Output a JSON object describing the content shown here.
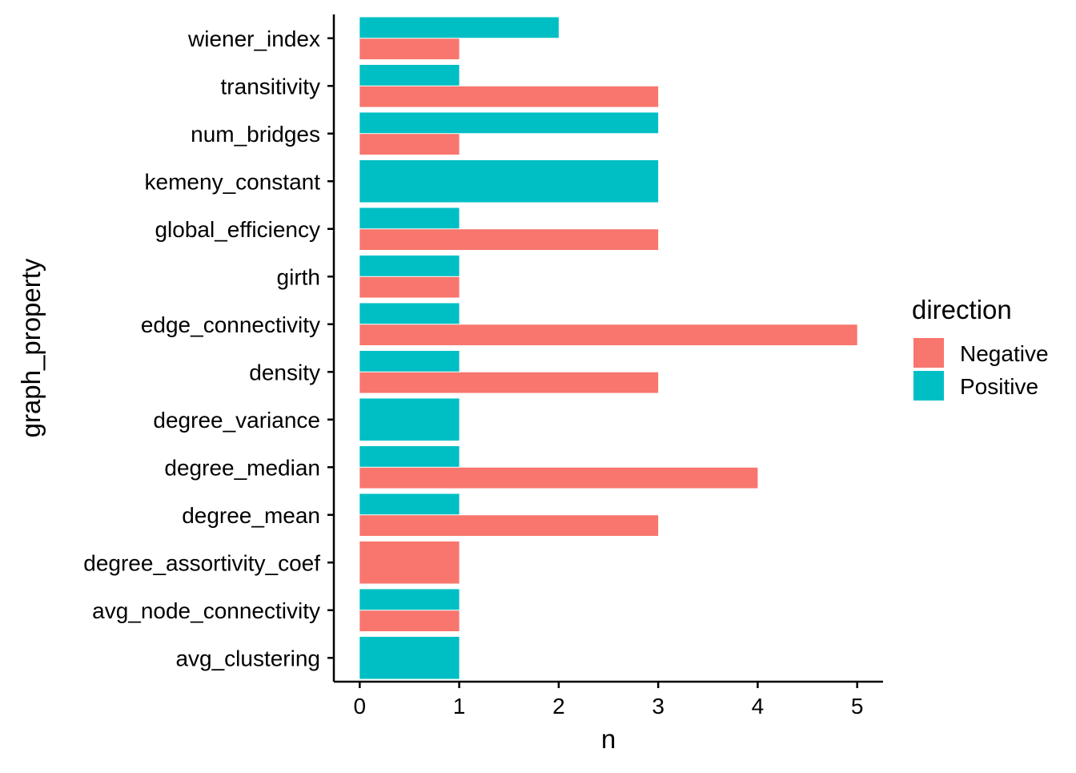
{
  "chart_data": {
    "type": "bar",
    "orientation": "horizontal",
    "bar_mode": "dodged",
    "xlabel": "n",
    "ylabel": "graph_property",
    "xlim": [
      -0.26,
      5.26
    ],
    "x_ticks": [
      0,
      1,
      2,
      3,
      4,
      5
    ],
    "grid": false,
    "legend": {
      "title": "direction",
      "position": "right"
    },
    "categories": [
      "wiener_index",
      "transitivity",
      "num_bridges",
      "kemeny_constant",
      "global_efficiency",
      "girth",
      "edge_connectivity",
      "density",
      "degree_variance",
      "degree_median",
      "degree_mean",
      "degree_assortivity_coef",
      "avg_node_connectivity",
      "avg_clustering"
    ],
    "series": [
      {
        "name": "Negative",
        "color": "#F8766D",
        "values": [
          1,
          3,
          1,
          null,
          3,
          1,
          5,
          3,
          null,
          4,
          3,
          1,
          1,
          null
        ]
      },
      {
        "name": "Positive",
        "color": "#00BFC4",
        "values": [
          2,
          1,
          3,
          3,
          1,
          1,
          1,
          1,
          1,
          1,
          1,
          null,
          1,
          1
        ]
      }
    ]
  }
}
